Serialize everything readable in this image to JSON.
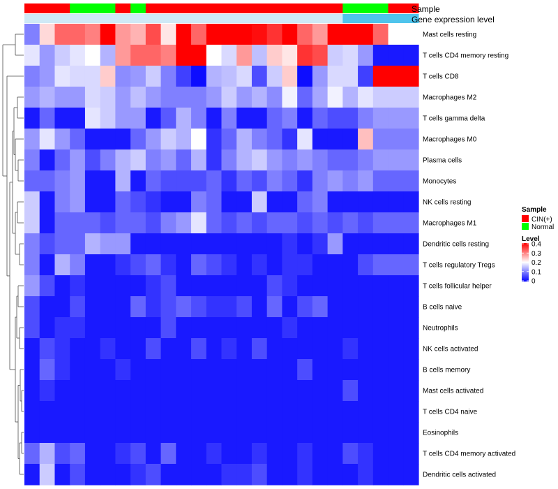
{
  "chart_data": {
    "type": "heatmap",
    "annotations": {
      "sample": {
        "title": "Sample",
        "legend_title": "Sample",
        "categories": [
          {
            "label": "CIN(+)",
            "color": "#ff0000"
          },
          {
            "label": "Normal",
            "color": "#00ff00"
          }
        ],
        "per_column": [
          "CIN(+)",
          "CIN(+)",
          "CIN(+)",
          "Normal",
          "Normal",
          "Normal",
          "CIN(+)",
          "Normal",
          "CIN(+)",
          "CIN(+)",
          "CIN(+)",
          "CIN(+)",
          "CIN(+)",
          "CIN(+)",
          "CIN(+)",
          "CIN(+)",
          "CIN(+)",
          "CIN(+)",
          "CIN(+)",
          "CIN(+)",
          "CIN(+)",
          "Normal",
          "Normal",
          "Normal",
          "CIN(+)",
          "CIN(+)"
        ]
      },
      "gene_expression": {
        "title": "Gene expression level",
        "per_column": [
          "low",
          "low",
          "low",
          "low",
          "low",
          "low",
          "low",
          "low",
          "low",
          "low",
          "low",
          "low",
          "low",
          "low",
          "low",
          "low",
          "low",
          "low",
          "low",
          "low",
          "low",
          "high",
          "high",
          "high",
          "high",
          "high"
        ],
        "colors": {
          "low": "#cfe9f6",
          "high": "#4fc4ec"
        }
      }
    },
    "legend": {
      "title": "Level",
      "ticks": [
        "0.4",
        "0.3",
        "0.2",
        "0.1",
        "0"
      ],
      "range": [
        0,
        0.4
      ],
      "colors": {
        "low": "#0000ff",
        "mid": "#ffffff",
        "high": "#ff0000"
      }
    },
    "color_scale": {
      "min": 0,
      "max": 0.4,
      "low": "#0000ff",
      "mid": "#ffffff",
      "high": "#ff0000"
    },
    "rows": [
      {
        "label": "Mast cells resting",
        "values": [
          0.1,
          0.23,
          0.32,
          0.32,
          0.3,
          0.4,
          0.28,
          0.26,
          0.34,
          0.22,
          0.4,
          0.32,
          0.4,
          0.4,
          0.4,
          0.39,
          0.36,
          0.4,
          0.32,
          0.28,
          0.4,
          0.4,
          0.4,
          0.32,
          0.2,
          0.2
        ]
      },
      {
        "label": "T cells CD4 memory resting",
        "values": [
          0.18,
          0.12,
          0.16,
          0.18,
          0.2,
          0.14,
          0.28,
          0.32,
          0.32,
          0.3,
          0.4,
          0.4,
          0.2,
          0.17,
          0.28,
          0.15,
          0.24,
          0.22,
          0.36,
          0.34,
          0.16,
          0.17,
          0.12,
          0.02,
          0.02,
          0.02
        ]
      },
      {
        "label": "T cells CD8",
        "values": [
          0.1,
          0.12,
          0.18,
          0.17,
          0.17,
          0.24,
          0.11,
          0.12,
          0.16,
          0.1,
          0.05,
          0.01,
          0.14,
          0.15,
          0.17,
          0.06,
          0.16,
          0.24,
          0.01,
          0.12,
          0.17,
          0.17,
          0.05,
          0.4,
          0.4,
          0.4
        ]
      },
      {
        "label": "Macrophages M2",
        "values": [
          0.12,
          0.14,
          0.12,
          0.12,
          0.17,
          0.16,
          0.12,
          0.15,
          0.12,
          0.1,
          0.1,
          0.1,
          0.12,
          0.16,
          0.12,
          0.14,
          0.11,
          0.19,
          0.08,
          0.13,
          0.19,
          0.14,
          0.18,
          0.16,
          0.16,
          0.16
        ]
      },
      {
        "label": "T cells gamma delta",
        "values": [
          0.02,
          0.08,
          0.02,
          0.02,
          0.18,
          0.16,
          0.12,
          0.12,
          0.02,
          0.07,
          0.14,
          0.1,
          0.02,
          0.1,
          0.02,
          0.02,
          0.08,
          0.1,
          0.02,
          0.08,
          0.06,
          0.06,
          0.1,
          0.12,
          0.12,
          0.12
        ]
      },
      {
        "label": "Macrophages M0",
        "values": [
          0.12,
          0.18,
          0.12,
          0.08,
          0.02,
          0.02,
          0.02,
          0.08,
          0.12,
          0.16,
          0.14,
          0.2,
          0.04,
          0.08,
          0.14,
          0.1,
          0.08,
          0.04,
          0.18,
          0.02,
          0.02,
          0.02,
          0.25,
          0.1,
          0.1,
          0.1
        ]
      },
      {
        "label": "Plasma cells",
        "values": [
          0.1,
          0.02,
          0.08,
          0.12,
          0.06,
          0.1,
          0.14,
          0.16,
          0.1,
          0.12,
          0.08,
          0.14,
          0.04,
          0.1,
          0.14,
          0.16,
          0.12,
          0.1,
          0.12,
          0.1,
          0.08,
          0.08,
          0.1,
          0.12,
          0.12,
          0.12
        ]
      },
      {
        "label": "Monocytes",
        "values": [
          0.08,
          0.08,
          0.1,
          0.12,
          0.02,
          0.02,
          0.14,
          0.02,
          0.08,
          0.06,
          0.06,
          0.06,
          0.08,
          0.04,
          0.08,
          0.06,
          0.1,
          0.08,
          0.04,
          0.1,
          0.12,
          0.1,
          0.12,
          0.08,
          0.08,
          0.08
        ]
      },
      {
        "label": "NK cells resting",
        "values": [
          0.16,
          0.02,
          0.1,
          0.12,
          0.02,
          0.02,
          0.08,
          0.06,
          0.04,
          0.02,
          0.02,
          0.1,
          0.08,
          0.02,
          0.02,
          0.16,
          0.02,
          0.02,
          0.08,
          0.1,
          0.02,
          0.02,
          0.02,
          0.02,
          0.02,
          0.02
        ]
      },
      {
        "label": "Macrophages M1",
        "values": [
          0.16,
          0.02,
          0.08,
          0.08,
          0.08,
          0.06,
          0.08,
          0.08,
          0.06,
          0.1,
          0.12,
          0.18,
          0.08,
          0.06,
          0.08,
          0.06,
          0.08,
          0.08,
          0.06,
          0.08,
          0.06,
          0.08,
          0.06,
          0.08,
          0.08,
          0.08
        ]
      },
      {
        "label": "Dendritic cells resting",
        "values": [
          0.1,
          0.06,
          0.08,
          0.08,
          0.14,
          0.12,
          0.12,
          0.02,
          0.02,
          0.02,
          0.02,
          0.02,
          0.02,
          0.02,
          0.02,
          0.02,
          0.02,
          0.04,
          0.02,
          0.04,
          0.12,
          0.02,
          0.02,
          0.02,
          0.02,
          0.02
        ]
      },
      {
        "label": "T cells regulatory  Tregs",
        "values": [
          0.1,
          0.02,
          0.14,
          0.1,
          0.02,
          0.02,
          0.04,
          0.06,
          0.08,
          0.04,
          0.02,
          0.08,
          0.06,
          0.04,
          0.02,
          0.04,
          0.02,
          0.04,
          0.04,
          0.02,
          0.02,
          0.02,
          0.06,
          0.08,
          0.08,
          0.08
        ]
      },
      {
        "label": "T cells follicular helper",
        "values": [
          0.12,
          0.06,
          0.02,
          0.04,
          0.02,
          0.02,
          0.02,
          0.02,
          0.04,
          0.06,
          0.02,
          0.02,
          0.02,
          0.02,
          0.02,
          0.02,
          0.06,
          0.04,
          0.02,
          0.02,
          0.02,
          0.02,
          0.02,
          0.02,
          0.02,
          0.02
        ]
      },
      {
        "label": "B cells naive",
        "values": [
          0.06,
          0.02,
          0.02,
          0.06,
          0.02,
          0.02,
          0.02,
          0.08,
          0.04,
          0.06,
          0.08,
          0.06,
          0.04,
          0.04,
          0.06,
          0.02,
          0.08,
          0.02,
          0.06,
          0.08,
          0.02,
          0.02,
          0.02,
          0.02,
          0.02,
          0.02
        ]
      },
      {
        "label": "Neutrophils",
        "values": [
          0.06,
          0.02,
          0.04,
          0.04,
          0.02,
          0.02,
          0.02,
          0.02,
          0.02,
          0.06,
          0.02,
          0.02,
          0.02,
          0.02,
          0.02,
          0.02,
          0.02,
          0.04,
          0.02,
          0.02,
          0.02,
          0.02,
          0.02,
          0.02,
          0.02,
          0.02
        ]
      },
      {
        "label": "NK cells activated",
        "values": [
          0.02,
          0.06,
          0.04,
          0.02,
          0.02,
          0.04,
          0.02,
          0.02,
          0.06,
          0.02,
          0.02,
          0.06,
          0.02,
          0.04,
          0.02,
          0.06,
          0.02,
          0.02,
          0.02,
          0.02,
          0.02,
          0.04,
          0.02,
          0.02,
          0.02,
          0.02
        ]
      },
      {
        "label": "B cells memory",
        "values": [
          0.02,
          0.08,
          0.04,
          0.02,
          0.02,
          0.02,
          0.04,
          0.02,
          0.02,
          0.02,
          0.02,
          0.02,
          0.02,
          0.02,
          0.02,
          0.02,
          0.02,
          0.02,
          0.06,
          0.02,
          0.02,
          0.02,
          0.02,
          0.02,
          0.02,
          0.02
        ]
      },
      {
        "label": "Mast cells activated",
        "values": [
          0.02,
          0.04,
          0.02,
          0.02,
          0.02,
          0.02,
          0.02,
          0.02,
          0.02,
          0.02,
          0.02,
          0.02,
          0.02,
          0.02,
          0.02,
          0.02,
          0.02,
          0.02,
          0.02,
          0.02,
          0.02,
          0.06,
          0.02,
          0.02,
          0.02,
          0.02
        ]
      },
      {
        "label": "T cells CD4 naive",
        "values": [
          0.02,
          0.02,
          0.02,
          0.02,
          0.02,
          0.02,
          0.02,
          0.02,
          0.02,
          0.02,
          0.02,
          0.02,
          0.02,
          0.02,
          0.02,
          0.02,
          0.02,
          0.02,
          0.02,
          0.02,
          0.02,
          0.02,
          0.02,
          0.02,
          0.02,
          0.02
        ]
      },
      {
        "label": "Eosinophils",
        "values": [
          0.02,
          0.02,
          0.02,
          0.02,
          0.02,
          0.02,
          0.02,
          0.02,
          0.02,
          0.02,
          0.02,
          0.02,
          0.02,
          0.02,
          0.02,
          0.02,
          0.02,
          0.02,
          0.02,
          0.02,
          0.02,
          0.02,
          0.02,
          0.02,
          0.02,
          0.02
        ]
      },
      {
        "label": "T cells CD4 memory activated",
        "values": [
          0.08,
          0.14,
          0.06,
          0.08,
          0.02,
          0.02,
          0.04,
          0.06,
          0.02,
          0.08,
          0.02,
          0.02,
          0.04,
          0.02,
          0.02,
          0.04,
          0.02,
          0.02,
          0.04,
          0.02,
          0.02,
          0.06,
          0.04,
          0.02,
          0.02,
          0.02
        ]
      },
      {
        "label": "Dendritic cells activated",
        "values": [
          0.02,
          0.16,
          0.02,
          0.06,
          0.02,
          0.02,
          0.02,
          0.04,
          0.06,
          0.02,
          0.02,
          0.02,
          0.02,
          0.04,
          0.04,
          0.06,
          0.02,
          0.02,
          0.04,
          0.02,
          0.02,
          0.02,
          0.04,
          0.02,
          0.02,
          0.02
        ]
      }
    ],
    "dendrogram": {
      "leaves": [
        "Mast cells resting",
        "T cells CD4 memory resting",
        "T cells CD8",
        "Macrophages M2",
        "T cells gamma delta",
        "Macrophages M0",
        "Plasma cells",
        "Monocytes",
        "NK cells resting",
        "Macrophages M1",
        "Dendritic cells resting",
        "T cells regulatory  Tregs",
        "T cells follicular helper",
        "B cells naive",
        "Neutrophils",
        "NK cells activated",
        "B cells memory",
        "Mast cells activated",
        "T cells CD4 naive",
        "Eosinophils",
        "T cells CD4 memory activated",
        "Dendritic cells activated"
      ],
      "merges": [
        {
          "a": "Mast cells resting",
          "b": "T cells CD4 memory resting",
          "height": 0.9
        },
        {
          "a": "Dendritic cells resting",
          "b": "T cells regulatory  Tregs",
          "height": 0.25
        },
        {
          "a": "Mast cells activated",
          "b": "T cells CD4 naive",
          "height": 0.05
        },
        {
          "a": "Eosinophils",
          "b": "T cells CD4 memory activated",
          "height": 0.1
        },
        {
          "a": "Macrophages M2",
          "b": "T cells gamma delta",
          "height": 0.3
        },
        {
          "a": "Plasma cells",
          "b": "Monocytes",
          "height": 0.25
        },
        {
          "a": "NK cells resting",
          "b": "Macrophages M1",
          "height": 0.3
        },
        {
          "a": "T cells follicular helper",
          "b": "B cells naive",
          "height": 0.3
        },
        {
          "a": "Neutrophils",
          "b": "NK cells activated",
          "height": 0.2
        },
        {
          "a": "B cells memory",
          "b": "Mast cells activated",
          "height": 0.15
        }
      ]
    }
  }
}
